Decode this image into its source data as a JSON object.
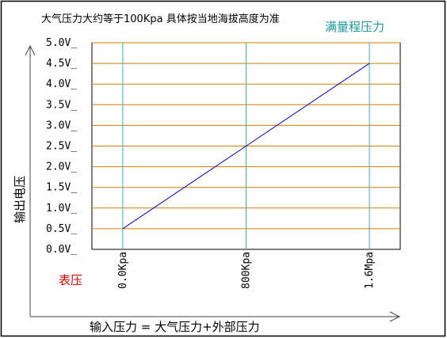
{
  "chart_data": {
    "type": "line",
    "title": "大气压力大约等于100Kpa 具体按当地海拔高度为准",
    "annotation_fullscale": "满量程压力",
    "annotation_gauge": "表压",
    "xlabel": "输入压力 = 大气压力+外部压力",
    "ylabel": "输出电压",
    "y_ticks": [
      "0.0V_",
      "0.5V_",
      "1.0V_",
      "1.5V_",
      "2.0V_",
      "2.5V_",
      "3.0V_",
      "3.5V_",
      "4.0V_",
      "4.5V_",
      "5.0V_"
    ],
    "y_tick_values": [
      0,
      0.5,
      1.0,
      1.5,
      2.0,
      2.5,
      3.0,
      3.5,
      4.0,
      4.5,
      5.0
    ],
    "ylim": [
      0,
      5.0
    ],
    "x_ticks": [
      "0.0Kpa",
      "800Kpa",
      "1.6Mpa"
    ],
    "x_tick_values": [
      0,
      800,
      1600
    ],
    "xlim": [
      -200,
      1800
    ],
    "series": [
      {
        "x": [
          0,
          800,
          1600
        ],
        "y": [
          0.5,
          2.5,
          4.5
        ]
      }
    ],
    "grid": true,
    "colors": {
      "grid_horizontal": "#cc8000",
      "grid_vertical": "#3ab0d0",
      "line": "#0000cc",
      "frame": "#000000",
      "axis_arrows": "#444444",
      "fullscale_text": "#1a9a9a",
      "gauge_text": "#e00000"
    }
  }
}
